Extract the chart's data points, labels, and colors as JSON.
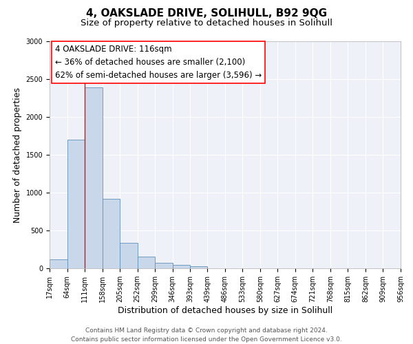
{
  "title": "4, OAKSLADE DRIVE, SOLIHULL, B92 9QG",
  "subtitle": "Size of property relative to detached houses in Solihull",
  "xlabel": "Distribution of detached houses by size in Solihull",
  "ylabel": "Number of detached properties",
  "bar_color": "#c8d8ea",
  "bar_edge_color": "#6090b8",
  "background_color": "#eef2f8",
  "grid_color": "#ffffff",
  "bin_edges": [
    17,
    64,
    111,
    158,
    205,
    252,
    299,
    346,
    393,
    439,
    486,
    533,
    580,
    627,
    674,
    721,
    768,
    815,
    862,
    909,
    956
  ],
  "bin_labels": [
    "17sqm",
    "64sqm",
    "111sqm",
    "158sqm",
    "205sqm",
    "252sqm",
    "299sqm",
    "346sqm",
    "393sqm",
    "439sqm",
    "486sqm",
    "533sqm",
    "580sqm",
    "627sqm",
    "674sqm",
    "721sqm",
    "768sqm",
    "815sqm",
    "862sqm",
    "909sqm",
    "956sqm"
  ],
  "bar_heights": [
    120,
    1700,
    2390,
    920,
    340,
    155,
    75,
    45,
    30,
    0,
    0,
    0,
    0,
    0,
    0,
    0,
    0,
    0,
    0,
    0
  ],
  "ylim": [
    0,
    3000
  ],
  "yticks": [
    0,
    500,
    1000,
    1500,
    2000,
    2500,
    3000
  ],
  "property_line_x": 111,
  "annotation_title": "4 OAKSLADE DRIVE: 116sqm",
  "annotation_line1": "← 36% of detached houses are smaller (2,100)",
  "annotation_line2": "62% of semi-detached houses are larger (3,596) →",
  "footer_line1": "Contains HM Land Registry data © Crown copyright and database right 2024.",
  "footer_line2": "Contains public sector information licensed under the Open Government Licence v3.0.",
  "title_fontsize": 11,
  "subtitle_fontsize": 9.5,
  "axis_label_fontsize": 9,
  "tick_fontsize": 7,
  "annotation_fontsize": 8.5,
  "footer_fontsize": 6.5
}
